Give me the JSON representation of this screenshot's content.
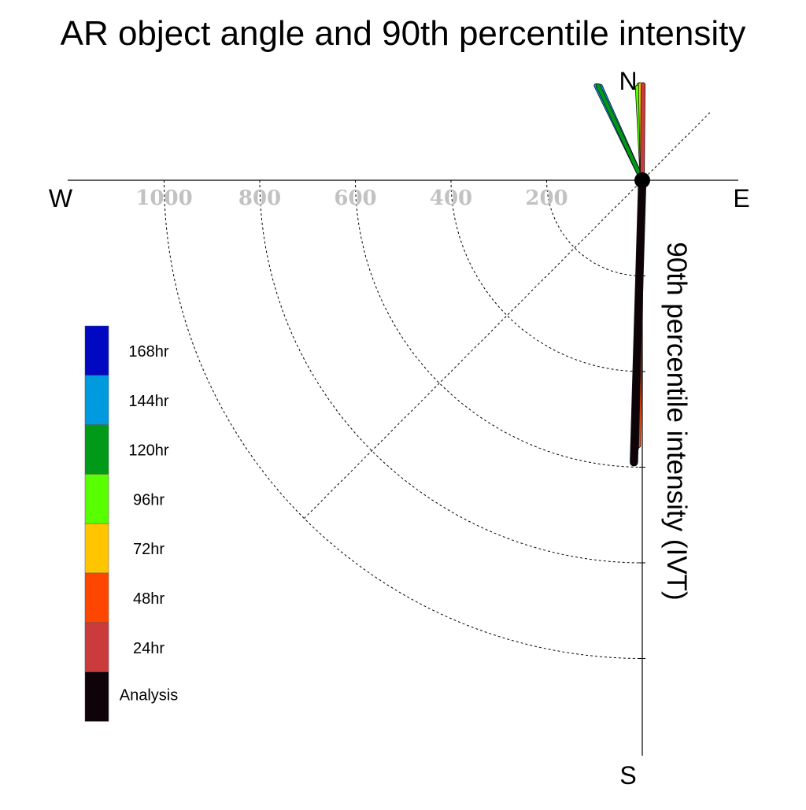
{
  "chart_data": {
    "type": "polar-vector",
    "title": "AR object angle and 90th percentile intensity",
    "radial_label": "90th percentile intensity (IVT)",
    "compass": {
      "north": "N",
      "east": "E",
      "south": "S",
      "west": "W"
    },
    "radial_ticks": [
      200,
      400,
      600,
      800,
      1000
    ],
    "radial_tick_labels": [
      "200",
      "400",
      "600",
      "800",
      "1000"
    ],
    "rmax": 1200,
    "grid": true,
    "legend_position": "left",
    "legend": [
      {
        "label": "168hr",
        "color": "#0008c2"
      },
      {
        "label": "144hr",
        "color": "#009ade"
      },
      {
        "label": "120hr",
        "color": "#009a18"
      },
      {
        "label": "96hr",
        "color": "#58ff00"
      },
      {
        "label": "72hr",
        "color": "#ffc600"
      },
      {
        "label": "48hr",
        "color": "#ff4600"
      },
      {
        "label": "24hr",
        "color": "#cc3b3b"
      },
      {
        "label": "Analysis",
        "color": "#0d0309"
      }
    ],
    "series": [
      {
        "name": "144hr",
        "color": "#009ade",
        "vectors": [
          {
            "angle_deg": 334,
            "intensity": 220
          },
          {
            "angle_deg": 336,
            "intensity": 215
          }
        ]
      },
      {
        "name": "120hr",
        "color": "#009a18",
        "vectors": [
          {
            "angle_deg": 335,
            "intensity": 218
          }
        ]
      },
      {
        "name": "96hr",
        "color": "#58ff00",
        "vectors": [
          {
            "angle_deg": 358,
            "intensity": 200
          },
          {
            "angle_deg": 357,
            "intensity": 195
          }
        ]
      },
      {
        "name": "72hr",
        "color": "#ffc600",
        "vectors": [
          {
            "angle_deg": 359,
            "intensity": 200
          }
        ]
      },
      {
        "name": "48hr",
        "color": "#ff4600",
        "vectors": [
          {
            "angle_deg": 180.8,
            "intensity": 555
          },
          {
            "angle_deg": 181.2,
            "intensity": 560
          }
        ]
      },
      {
        "name": "24hr",
        "color": "#cc3b3b",
        "vectors": [
          {
            "angle_deg": 181.5,
            "intensity": 545
          },
          {
            "angle_deg": 0.5,
            "intensity": 200
          }
        ]
      },
      {
        "name": "Analysis",
        "color": "#0d0309",
        "vectors": [
          {
            "angle_deg": 181.7,
            "intensity": 590
          }
        ]
      }
    ]
  }
}
